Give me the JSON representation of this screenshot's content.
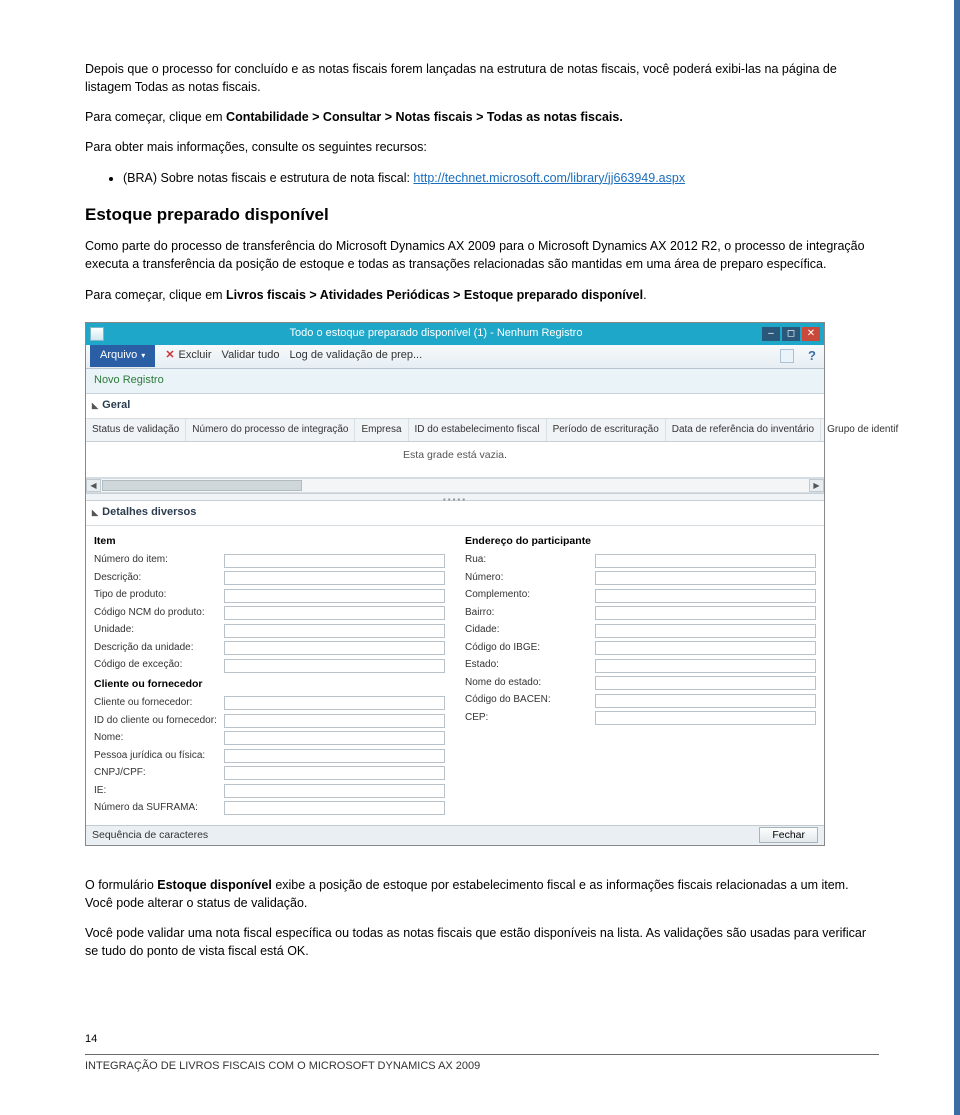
{
  "doc": {
    "p1a": "Depois que o processo for concluído e as notas fiscais forem lançadas na estrutura de notas fiscais, você poderá exibi-las na página de listagem Todas as notas fiscais.",
    "p1b_prefix": "Para começar, clique em ",
    "p1b_path": "Contabilidade > Consultar > Notas fiscais > Todas as notas fiscais.",
    "p2": "Para obter mais informações, consulte os seguintes recursos:",
    "bullet1_text": "(BRA) Sobre notas fiscais e estrutura de nota fiscal: ",
    "bullet1_link": "http://technet.microsoft.com/library/jj663949.aspx",
    "heading": "Estoque preparado disponível",
    "p3": "Como parte do processo de transferência do Microsoft Dynamics AX 2009 para o Microsoft Dynamics AX 2012 R2, o processo de integração executa a transferência da posição de estoque e todas as transações relacionadas são mantidas em uma área de preparo específica.",
    "p4_prefix": "Para começar, clique em ",
    "p4_path": "Livros fiscais > Atividades Periódicas > Estoque preparado disponível",
    "p4_suffix": ".",
    "p5_a": "O formulário ",
    "p5_b": "Estoque disponível",
    "p5_c": " exibe a posição de estoque por estabelecimento fiscal e as informações fiscais relacionadas a um item. Você pode alterar o status de validação.",
    "p6": "Você pode validar uma nota fiscal específica ou todas as notas fiscais que estão disponíveis na lista. As validações são usadas para verificar se tudo do ponto de vista fiscal está OK.",
    "page_num": "14",
    "footer": "INTEGRAÇÃO DE LIVROS FISCAIS COM O MICROSOFT DYNAMICS AX 2009"
  },
  "win": {
    "title": "Todo o estoque preparado disponível (1) - Nenhum Registro",
    "arquivo": "Arquivo",
    "excluir": "Excluir",
    "validar": "Validar tudo",
    "log": "Log de validação de prep...",
    "novo": "Novo Registro",
    "geral": "Geral",
    "cols": {
      "c1": "Status de validação",
      "c2": "Número do processo de integração",
      "c3": "Empresa",
      "c4": "ID do estabelecimento fiscal",
      "c5": "Período de escrituração",
      "c6": "Data de referência do inventário",
      "c7": "Grupo de identif"
    },
    "empty": "Esta grade está vazia.",
    "detalhes": "Detalhes diversos",
    "item_hdr": "Item",
    "endereco_hdr": "Endereço do participante",
    "item_fields": [
      "Número do item:",
      "Descrição:",
      "Tipo de produto:",
      "Código NCM do produto:",
      "Unidade:",
      "Descrição da unidade:",
      "Código de exceção:"
    ],
    "cliente_hdr": "Cliente ou fornecedor",
    "cliente_fields": [
      "Cliente ou fornecedor:",
      "ID do cliente ou fornecedor:",
      "Nome:",
      "Pessoa jurídica ou física:",
      "CNPJ/CPF:",
      "IE:",
      "Número da SUFRAMA:"
    ],
    "endereco_fields": [
      "Rua:",
      "Número:",
      "Complemento:",
      "Bairro:",
      "Cidade:",
      "Código do IBGE:",
      "Estado:",
      "Nome do estado:",
      "Código do BACEN:",
      "CEP:"
    ],
    "status_text": "Sequência de caracteres",
    "fechar": "Fechar"
  }
}
